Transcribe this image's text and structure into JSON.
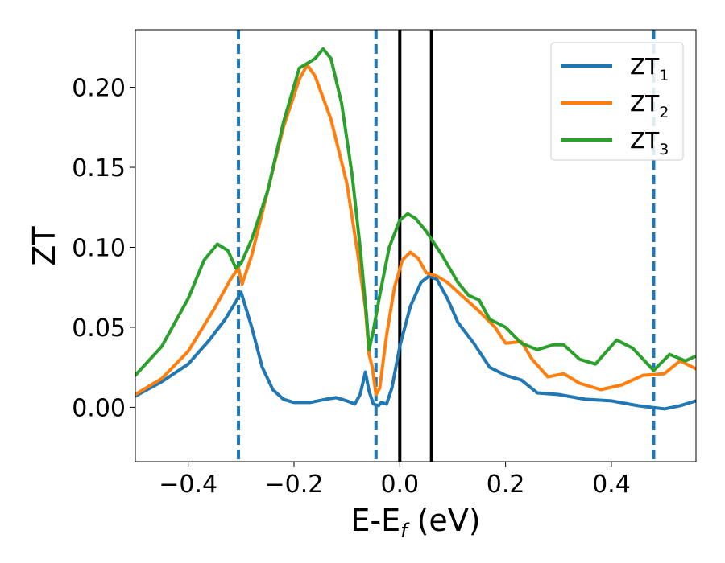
{
  "chart_data": {
    "type": "line",
    "xlabel": {
      "main": "E-E",
      "sub": "f",
      "suffix": " (eV)"
    },
    "ylabel": "ZT",
    "xlim": [
      -0.5,
      0.56
    ],
    "ylim": [
      -0.034,
      0.236
    ],
    "x_ticks": [
      {
        "value": -0.4,
        "label": "−0.4"
      },
      {
        "value": -0.2,
        "label": "−0.2"
      },
      {
        "value": 0.0,
        "label": "0.0"
      },
      {
        "value": 0.2,
        "label": "0.2"
      },
      {
        "value": 0.4,
        "label": "0.4"
      }
    ],
    "y_ticks": [
      {
        "value": 0.0,
        "label": "0.00"
      },
      {
        "value": 0.05,
        "label": "0.05"
      },
      {
        "value": 0.1,
        "label": "0.10"
      },
      {
        "value": 0.15,
        "label": "0.15"
      },
      {
        "value": 0.2,
        "label": "0.20"
      }
    ],
    "grid": false,
    "legend_position": "top-right",
    "vlines": [
      {
        "x": -0.305,
        "style": "dashed",
        "color": "#1f77b4"
      },
      {
        "x": -0.045,
        "style": "dashed",
        "color": "#1f77b4"
      },
      {
        "x": 0.0,
        "style": "solid",
        "color": "#000000"
      },
      {
        "x": 0.06,
        "style": "solid",
        "color": "#000000"
      },
      {
        "x": 0.48,
        "style": "dashed",
        "color": "#1f77b4"
      }
    ],
    "series": [
      {
        "name": "ZT",
        "sub": "1",
        "color": "#1f77b4",
        "points": [
          [
            -0.5,
            0.007
          ],
          [
            -0.45,
            0.016
          ],
          [
            -0.4,
            0.027
          ],
          [
            -0.36,
            0.042
          ],
          [
            -0.33,
            0.055
          ],
          [
            -0.31,
            0.066
          ],
          [
            -0.3,
            0.072
          ],
          [
            -0.28,
            0.05
          ],
          [
            -0.26,
            0.025
          ],
          [
            -0.24,
            0.011
          ],
          [
            -0.22,
            0.005
          ],
          [
            -0.2,
            0.003
          ],
          [
            -0.17,
            0.003
          ],
          [
            -0.14,
            0.005
          ],
          [
            -0.12,
            0.006
          ],
          [
            -0.1,
            0.004
          ],
          [
            -0.085,
            0.002
          ],
          [
            -0.075,
            0.008
          ],
          [
            -0.065,
            0.022
          ],
          [
            -0.058,
            0.01
          ],
          [
            -0.05,
            0.002
          ],
          [
            -0.04,
            0.001
          ],
          [
            -0.035,
            0.003
          ],
          [
            -0.025,
            0.002
          ],
          [
            -0.015,
            0.012
          ],
          [
            0.0,
            0.038
          ],
          [
            0.02,
            0.063
          ],
          [
            0.04,
            0.078
          ],
          [
            0.055,
            0.082
          ],
          [
            0.07,
            0.08
          ],
          [
            0.09,
            0.068
          ],
          [
            0.11,
            0.053
          ],
          [
            0.14,
            0.04
          ],
          [
            0.17,
            0.025
          ],
          [
            0.2,
            0.02
          ],
          [
            0.23,
            0.017
          ],
          [
            0.26,
            0.009
          ],
          [
            0.3,
            0.008
          ],
          [
            0.35,
            0.005
          ],
          [
            0.4,
            0.004
          ],
          [
            0.45,
            0.001
          ],
          [
            0.5,
            -0.001
          ],
          [
            0.53,
            0.001
          ],
          [
            0.56,
            0.004
          ]
        ]
      },
      {
        "name": "ZT",
        "sub": "2",
        "color": "#ff7f0e",
        "points": [
          [
            -0.5,
            0.008
          ],
          [
            -0.45,
            0.018
          ],
          [
            -0.4,
            0.035
          ],
          [
            -0.35,
            0.062
          ],
          [
            -0.32,
            0.08
          ],
          [
            -0.305,
            0.087
          ],
          [
            -0.298,
            0.077
          ],
          [
            -0.28,
            0.095
          ],
          [
            -0.25,
            0.135
          ],
          [
            -0.22,
            0.175
          ],
          [
            -0.19,
            0.205
          ],
          [
            -0.175,
            0.214
          ],
          [
            -0.16,
            0.207
          ],
          [
            -0.13,
            0.18
          ],
          [
            -0.1,
            0.14
          ],
          [
            -0.08,
            0.097
          ],
          [
            -0.065,
            0.062
          ],
          [
            -0.058,
            0.033
          ],
          [
            -0.052,
            0.025
          ],
          [
            -0.045,
            0.008
          ],
          [
            -0.038,
            0.012
          ],
          [
            -0.025,
            0.045
          ],
          [
            -0.01,
            0.075
          ],
          [
            0.005,
            0.092
          ],
          [
            0.02,
            0.097
          ],
          [
            0.035,
            0.093
          ],
          [
            0.05,
            0.084
          ],
          [
            0.07,
            0.082
          ],
          [
            0.09,
            0.078
          ],
          [
            0.12,
            0.069
          ],
          [
            0.15,
            0.06
          ],
          [
            0.18,
            0.05
          ],
          [
            0.2,
            0.04
          ],
          [
            0.23,
            0.041
          ],
          [
            0.25,
            0.03
          ],
          [
            0.28,
            0.019
          ],
          [
            0.31,
            0.021
          ],
          [
            0.34,
            0.015
          ],
          [
            0.38,
            0.011
          ],
          [
            0.42,
            0.014
          ],
          [
            0.46,
            0.02
          ],
          [
            0.5,
            0.021
          ],
          [
            0.53,
            0.029
          ],
          [
            0.56,
            0.024
          ]
        ]
      },
      {
        "name": "ZT",
        "sub": "3",
        "color": "#2ca02c",
        "points": [
          [
            -0.5,
            0.02
          ],
          [
            -0.45,
            0.038
          ],
          [
            -0.4,
            0.068
          ],
          [
            -0.37,
            0.092
          ],
          [
            -0.345,
            0.102
          ],
          [
            -0.325,
            0.098
          ],
          [
            -0.31,
            0.087
          ],
          [
            -0.3,
            0.09
          ],
          [
            -0.28,
            0.105
          ],
          [
            -0.25,
            0.135
          ],
          [
            -0.22,
            0.178
          ],
          [
            -0.19,
            0.212
          ],
          [
            -0.175,
            0.215
          ],
          [
            -0.16,
            0.218
          ],
          [
            -0.145,
            0.224
          ],
          [
            -0.13,
            0.218
          ],
          [
            -0.11,
            0.19
          ],
          [
            -0.09,
            0.145
          ],
          [
            -0.075,
            0.1
          ],
          [
            -0.063,
            0.058
          ],
          [
            -0.058,
            0.036
          ],
          [
            -0.05,
            0.048
          ],
          [
            -0.038,
            0.07
          ],
          [
            -0.02,
            0.1
          ],
          [
            0.0,
            0.117
          ],
          [
            0.015,
            0.121
          ],
          [
            0.03,
            0.118
          ],
          [
            0.05,
            0.11
          ],
          [
            0.08,
            0.095
          ],
          [
            0.11,
            0.078
          ],
          [
            0.13,
            0.07
          ],
          [
            0.15,
            0.067
          ],
          [
            0.17,
            0.055
          ],
          [
            0.2,
            0.05
          ],
          [
            0.23,
            0.04
          ],
          [
            0.26,
            0.036
          ],
          [
            0.29,
            0.039
          ],
          [
            0.31,
            0.039
          ],
          [
            0.34,
            0.03
          ],
          [
            0.37,
            0.027
          ],
          [
            0.41,
            0.042
          ],
          [
            0.44,
            0.037
          ],
          [
            0.48,
            0.023
          ],
          [
            0.51,
            0.033
          ],
          [
            0.54,
            0.029
          ],
          [
            0.56,
            0.032
          ]
        ]
      }
    ]
  }
}
